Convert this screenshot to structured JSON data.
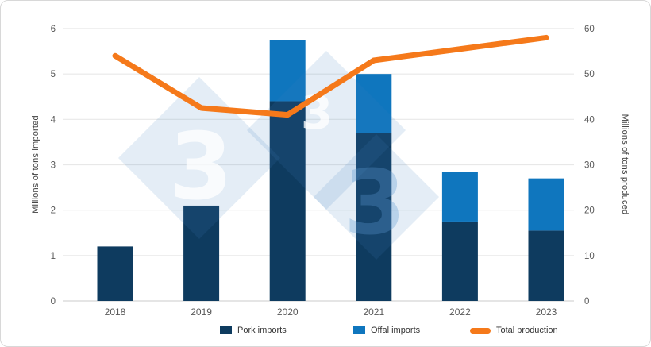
{
  "watermark": {
    "glyph": "3"
  },
  "colors": {
    "grid": "#e8e8e8",
    "axis_line": "#d5d5d5",
    "tick_text": "#595959",
    "axis_title_text": "#404040",
    "card_border": "#d8d8d8",
    "watermark_blue": "#3e7fc1",
    "watermark_glyph_white": "#ffffff",
    "watermark_glyph_blue": "#5e9ad3"
  },
  "chart_data": {
    "type": "bar",
    "subtype": "stacked-bars-with-line",
    "categories": [
      "2018",
      "2019",
      "2020",
      "2021",
      "2022",
      "2023"
    ],
    "series": [
      {
        "name": "Pork imports",
        "chart_type": "bar",
        "stack": "imports",
        "axis": "left",
        "color": "#0e3b5f",
        "values": [
          1.2,
          2.1,
          4.4,
          3.7,
          1.75,
          1.55
        ]
      },
      {
        "name": "Offal imports",
        "chart_type": "bar",
        "stack": "imports",
        "axis": "left",
        "color": "#0f76be",
        "values": [
          0,
          0,
          1.35,
          1.3,
          1.1,
          1.15
        ]
      },
      {
        "name": "Total production",
        "chart_type": "line",
        "axis": "right",
        "color": "#f5791a",
        "values": [
          54,
          42.5,
          41,
          53,
          55.5,
          58
        ]
      }
    ],
    "stacked_bar_totals": [
      1.2,
      2.1,
      5.75,
      5.0,
      2.85,
      2.7
    ],
    "left_axis": {
      "label": "Millions of tons imported",
      "min": 0,
      "max": 6,
      "step": 1,
      "ticks": [
        0,
        1,
        2,
        3,
        4,
        5,
        6
      ]
    },
    "right_axis": {
      "label": "Millions of tons produced",
      "min": 0,
      "max": 60,
      "step": 10,
      "ticks": [
        0,
        10,
        20,
        30,
        40,
        50,
        60
      ]
    },
    "title": "",
    "grid": true,
    "legend_position": "bottom"
  }
}
